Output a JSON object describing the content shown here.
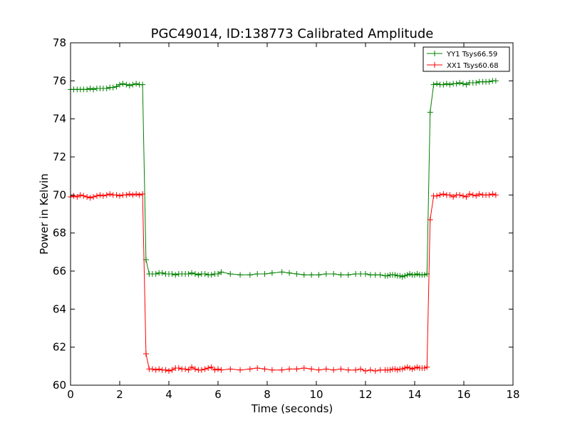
{
  "chart_data": {
    "type": "line",
    "title": "PGC49014, ID:138773 Calibrated Amplitude",
    "xlabel": "Time (seconds)",
    "ylabel": "Power in Kelvin",
    "xlim": [
      0,
      18
    ],
    "ylim": [
      60,
      78
    ],
    "xticks": [
      "0",
      "2",
      "4",
      "6",
      "8",
      "10",
      "12",
      "14",
      "16",
      "18"
    ],
    "yticks": [
      "60",
      "62",
      "64",
      "66",
      "68",
      "70",
      "72",
      "74",
      "76",
      "78"
    ],
    "grid": false,
    "legend_position": "top-right",
    "marker": "+",
    "series": [
      {
        "name": "YY1 Tsys66.59",
        "color": "#008000",
        "x": [
          0.0,
          0.13,
          0.27,
          0.4,
          0.53,
          0.67,
          0.8,
          0.93,
          1.07,
          1.2,
          1.33,
          1.47,
          1.6,
          1.73,
          1.87,
          2.0,
          2.13,
          2.27,
          2.4,
          2.53,
          2.67,
          2.8,
          2.93,
          3.07,
          3.2,
          3.33,
          3.47,
          3.6,
          3.73,
          3.87,
          4.0,
          4.13,
          4.27,
          4.4,
          4.53,
          4.67,
          4.8,
          4.93,
          5.07,
          5.2,
          5.33,
          5.47,
          5.6,
          5.73,
          5.87,
          6.0,
          6.13,
          6.5,
          6.9,
          7.3,
          7.6,
          7.9,
          8.2,
          8.6,
          8.9,
          9.2,
          9.5,
          9.8,
          10.1,
          10.4,
          10.7,
          11.0,
          11.3,
          11.6,
          11.8,
          12.0,
          12.2,
          12.4,
          12.6,
          12.8,
          12.9,
          13.0,
          13.1,
          13.2,
          13.3,
          13.4,
          13.5,
          13.6,
          13.7,
          13.8,
          13.9,
          14.0,
          14.1,
          14.2,
          14.3,
          14.4,
          14.5,
          14.63,
          14.77,
          14.9,
          15.03,
          15.17,
          15.3,
          15.43,
          15.57,
          15.7,
          15.83,
          15.97,
          16.1,
          16.23,
          16.37,
          16.5,
          16.63,
          16.77,
          16.9,
          17.03,
          17.17,
          17.3
        ],
        "y": [
          75.55,
          75.55,
          75.55,
          75.55,
          75.55,
          75.55,
          75.6,
          75.55,
          75.6,
          75.6,
          75.6,
          75.6,
          75.65,
          75.65,
          75.7,
          75.8,
          75.85,
          75.8,
          75.75,
          75.8,
          75.85,
          75.8,
          75.8,
          66.6,
          65.85,
          65.85,
          65.85,
          65.9,
          65.9,
          65.85,
          65.85,
          65.85,
          65.8,
          65.85,
          65.85,
          65.85,
          65.85,
          65.9,
          65.85,
          65.8,
          65.85,
          65.85,
          65.8,
          65.8,
          65.85,
          65.85,
          65.95,
          65.85,
          65.8,
          65.8,
          65.85,
          65.85,
          65.9,
          65.95,
          65.9,
          65.85,
          65.8,
          65.8,
          65.8,
          65.85,
          65.85,
          65.8,
          65.8,
          65.85,
          65.85,
          65.85,
          65.8,
          65.8,
          65.8,
          65.75,
          65.75,
          65.8,
          65.8,
          65.8,
          65.75,
          65.75,
          65.7,
          65.75,
          65.8,
          65.85,
          65.8,
          65.8,
          65.85,
          65.8,
          65.8,
          65.8,
          65.85,
          74.35,
          75.8,
          75.85,
          75.8,
          75.8,
          75.85,
          75.8,
          75.85,
          75.85,
          75.9,
          75.85,
          75.8,
          75.9,
          75.9,
          75.9,
          75.95,
          75.95,
          75.95,
          75.95,
          76.0,
          76.0
        ],
        "x_note": ""
      },
      {
        "name": "XX1 Tsys60.68",
        "color": "#ff0000",
        "x": [
          0.0,
          0.13,
          0.27,
          0.4,
          0.53,
          0.67,
          0.8,
          0.93,
          1.07,
          1.2,
          1.33,
          1.47,
          1.6,
          1.73,
          1.87,
          2.0,
          2.13,
          2.27,
          2.4,
          2.53,
          2.67,
          2.8,
          2.93,
          3.07,
          3.2,
          3.33,
          3.47,
          3.6,
          3.73,
          3.87,
          4.0,
          4.13,
          4.27,
          4.4,
          4.53,
          4.67,
          4.8,
          4.93,
          5.07,
          5.2,
          5.33,
          5.47,
          5.6,
          5.73,
          5.87,
          6.0,
          6.13,
          6.5,
          6.9,
          7.3,
          7.6,
          7.9,
          8.2,
          8.6,
          8.9,
          9.2,
          9.5,
          9.8,
          10.1,
          10.4,
          10.7,
          11.0,
          11.3,
          11.6,
          11.8,
          12.0,
          12.2,
          12.4,
          12.6,
          12.8,
          12.9,
          13.0,
          13.1,
          13.2,
          13.3,
          13.4,
          13.5,
          13.6,
          13.7,
          13.8,
          13.9,
          14.0,
          14.1,
          14.2,
          14.3,
          14.4,
          14.5,
          14.63,
          14.77,
          14.9,
          15.03,
          15.17,
          15.3,
          15.43,
          15.57,
          15.7,
          15.83,
          15.97,
          16.1,
          16.23,
          16.37,
          16.5,
          16.63,
          16.77,
          16.9,
          17.03,
          17.17,
          17.3
        ],
        "y": [
          69.9,
          69.95,
          69.9,
          70.0,
          69.95,
          69.9,
          69.85,
          69.9,
          69.95,
          70.0,
          69.95,
          70.0,
          70.05,
          70.0,
          70.0,
          69.95,
          70.0,
          70.0,
          70.05,
          70.0,
          70.05,
          70.0,
          70.05,
          61.65,
          60.85,
          60.85,
          60.8,
          60.85,
          60.8,
          60.8,
          60.75,
          60.8,
          60.9,
          60.9,
          60.85,
          60.85,
          60.8,
          60.95,
          60.85,
          60.8,
          60.8,
          60.85,
          60.9,
          60.95,
          60.8,
          60.85,
          60.8,
          60.85,
          60.8,
          60.85,
          60.9,
          60.85,
          60.8,
          60.8,
          60.85,
          60.85,
          60.9,
          60.85,
          60.8,
          60.85,
          60.8,
          60.85,
          60.8,
          60.8,
          60.85,
          60.75,
          60.8,
          60.75,
          60.8,
          60.8,
          60.8,
          60.8,
          60.85,
          60.85,
          60.8,
          60.85,
          60.85,
          60.9,
          60.95,
          60.9,
          60.85,
          60.9,
          60.95,
          60.9,
          60.9,
          60.9,
          60.95,
          68.7,
          69.95,
          69.95,
          70.0,
          70.05,
          70.0,
          70.0,
          69.9,
          70.0,
          70.0,
          69.95,
          69.9,
          70.05,
          70.0,
          69.95,
          70.05,
          70.0,
          70.0,
          70.0,
          70.05,
          70.0
        ]
      }
    ]
  }
}
